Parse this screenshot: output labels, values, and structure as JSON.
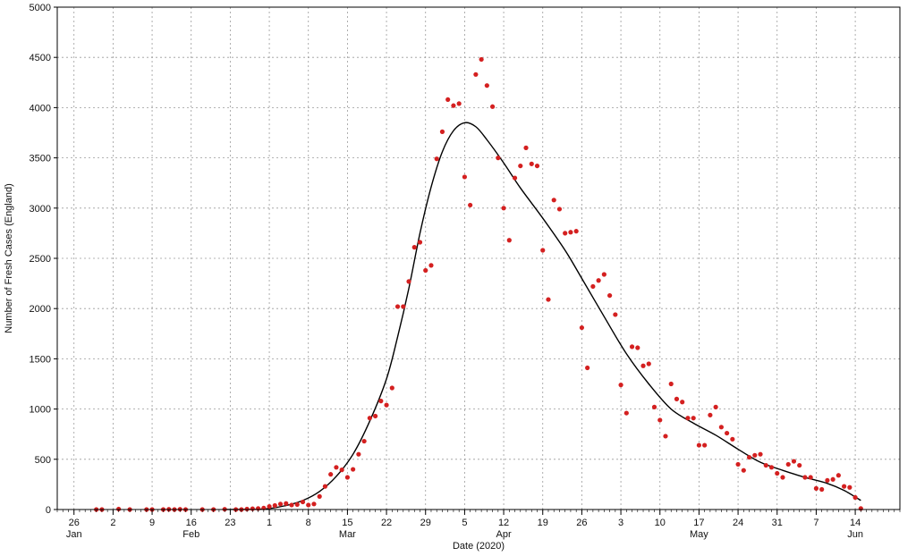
{
  "chart_data": {
    "type": "scatter",
    "title": "",
    "xlabel": "Date (2020)",
    "ylabel": "Number of Fresh Cases (England)",
    "ylim": [
      0,
      5000
    ],
    "xlim": [
      "2020-01-23",
      "2020-06-22"
    ],
    "grid": true,
    "y_ticks": [
      0,
      500,
      1000,
      1500,
      2000,
      2500,
      3000,
      3500,
      4000,
      4500,
      5000
    ],
    "x_ticks": [
      {
        "date": "2020-01-26",
        "label": "26"
      },
      {
        "date": "2020-02-02",
        "label": "2"
      },
      {
        "date": "2020-02-09",
        "label": "9"
      },
      {
        "date": "2020-02-16",
        "label": "16"
      },
      {
        "date": "2020-02-23",
        "label": "23"
      },
      {
        "date": "2020-03-01",
        "label": "1"
      },
      {
        "date": "2020-03-08",
        "label": "8"
      },
      {
        "date": "2020-03-15",
        "label": "15"
      },
      {
        "date": "2020-03-22",
        "label": "22"
      },
      {
        "date": "2020-03-29",
        "label": "29"
      },
      {
        "date": "2020-04-05",
        "label": "5"
      },
      {
        "date": "2020-04-12",
        "label": "12"
      },
      {
        "date": "2020-04-19",
        "label": "19"
      },
      {
        "date": "2020-04-26",
        "label": "26"
      },
      {
        "date": "2020-05-03",
        "label": "3"
      },
      {
        "date": "2020-05-10",
        "label": "10"
      },
      {
        "date": "2020-05-17",
        "label": "17"
      },
      {
        "date": "2020-05-24",
        "label": "24"
      },
      {
        "date": "2020-05-31",
        "label": "31"
      },
      {
        "date": "2020-06-07",
        "label": "7"
      },
      {
        "date": "2020-06-14",
        "label": "14"
      }
    ],
    "month_labels": [
      {
        "date": "2020-01-26",
        "label": "Jan"
      },
      {
        "date": "2020-02-16",
        "label": "Feb"
      },
      {
        "date": "2020-03-15",
        "label": "Mar"
      },
      {
        "date": "2020-04-12",
        "label": "Apr"
      },
      {
        "date": "2020-05-17",
        "label": "May"
      },
      {
        "date": "2020-06-14",
        "label": "Jun"
      }
    ],
    "series": [
      {
        "kind": "scatter",
        "color": "#d42020",
        "points": [
          [
            "2020-01-30",
            0
          ],
          [
            "2020-01-31",
            0
          ],
          [
            "2020-02-03",
            5
          ],
          [
            "2020-02-05",
            0
          ],
          [
            "2020-02-08",
            0
          ],
          [
            "2020-02-09",
            0
          ],
          [
            "2020-02-11",
            0
          ],
          [
            "2020-02-12",
            2
          ],
          [
            "2020-02-13",
            0
          ],
          [
            "2020-02-14",
            3
          ],
          [
            "2020-02-15",
            0
          ],
          [
            "2020-02-18",
            0
          ],
          [
            "2020-02-20",
            0
          ],
          [
            "2020-02-22",
            3
          ],
          [
            "2020-02-24",
            0
          ],
          [
            "2020-02-25",
            0
          ],
          [
            "2020-02-26",
            5
          ],
          [
            "2020-02-27",
            8
          ],
          [
            "2020-02-28",
            10
          ],
          [
            "2020-02-29",
            15
          ],
          [
            "2020-03-01",
            30
          ],
          [
            "2020-03-02",
            40
          ],
          [
            "2020-03-03",
            55
          ],
          [
            "2020-03-04",
            60
          ],
          [
            "2020-03-05",
            45
          ],
          [
            "2020-03-06",
            50
          ],
          [
            "2020-03-07",
            75
          ],
          [
            "2020-03-08",
            45
          ],
          [
            "2020-03-09",
            55
          ],
          [
            "2020-03-10",
            130
          ],
          [
            "2020-03-11",
            230
          ],
          [
            "2020-03-12",
            350
          ],
          [
            "2020-03-13",
            420
          ],
          [
            "2020-03-14",
            395
          ],
          [
            "2020-03-15",
            320
          ],
          [
            "2020-03-16",
            400
          ],
          [
            "2020-03-17",
            550
          ],
          [
            "2020-03-18",
            680
          ],
          [
            "2020-03-19",
            910
          ],
          [
            "2020-03-20",
            930
          ],
          [
            "2020-03-21",
            1080
          ],
          [
            "2020-03-22",
            1040
          ],
          [
            "2020-03-23",
            1210
          ],
          [
            "2020-03-24",
            2020
          ],
          [
            "2020-03-25",
            2020
          ],
          [
            "2020-03-26",
            2270
          ],
          [
            "2020-03-27",
            2610
          ],
          [
            "2020-03-28",
            2660
          ],
          [
            "2020-03-29",
            2380
          ],
          [
            "2020-03-30",
            2430
          ],
          [
            "2020-03-31",
            3490
          ],
          [
            "2020-04-01",
            3760
          ],
          [
            "2020-04-02",
            4080
          ],
          [
            "2020-04-03",
            4020
          ],
          [
            "2020-04-04",
            4040
          ],
          [
            "2020-04-05",
            3310
          ],
          [
            "2020-04-06",
            3030
          ],
          [
            "2020-04-07",
            4330
          ],
          [
            "2020-04-08",
            4480
          ],
          [
            "2020-04-09",
            4220
          ],
          [
            "2020-04-10",
            4010
          ],
          [
            "2020-04-11",
            3500
          ],
          [
            "2020-04-12",
            3000
          ],
          [
            "2020-04-13",
            2680
          ],
          [
            "2020-04-14",
            3300
          ],
          [
            "2020-04-15",
            3420
          ],
          [
            "2020-04-16",
            3600
          ],
          [
            "2020-04-17",
            3440
          ],
          [
            "2020-04-18",
            3420
          ],
          [
            "2020-04-19",
            2580
          ],
          [
            "2020-04-20",
            2090
          ],
          [
            "2020-04-21",
            3080
          ],
          [
            "2020-04-22",
            2990
          ],
          [
            "2020-04-23",
            2750
          ],
          [
            "2020-04-24",
            2760
          ],
          [
            "2020-04-25",
            2770
          ],
          [
            "2020-04-26",
            1810
          ],
          [
            "2020-04-27",
            1410
          ],
          [
            "2020-04-28",
            2220
          ],
          [
            "2020-04-29",
            2280
          ],
          [
            "2020-04-30",
            2340
          ],
          [
            "2020-05-01",
            2130
          ],
          [
            "2020-05-02",
            1940
          ],
          [
            "2020-05-03",
            1240
          ],
          [
            "2020-05-04",
            960
          ],
          [
            "2020-05-05",
            1620
          ],
          [
            "2020-05-06",
            1610
          ],
          [
            "2020-05-07",
            1430
          ],
          [
            "2020-05-08",
            1450
          ],
          [
            "2020-05-09",
            1020
          ],
          [
            "2020-05-10",
            890
          ],
          [
            "2020-05-11",
            730
          ],
          [
            "2020-05-12",
            1250
          ],
          [
            "2020-05-13",
            1100
          ],
          [
            "2020-05-14",
            1070
          ],
          [
            "2020-05-15",
            910
          ],
          [
            "2020-05-16",
            910
          ],
          [
            "2020-05-17",
            640
          ],
          [
            "2020-05-18",
            640
          ],
          [
            "2020-05-19",
            940
          ],
          [
            "2020-05-20",
            1020
          ],
          [
            "2020-05-21",
            820
          ],
          [
            "2020-05-22",
            760
          ],
          [
            "2020-05-23",
            700
          ],
          [
            "2020-05-24",
            450
          ],
          [
            "2020-05-25",
            390
          ],
          [
            "2020-05-26",
            520
          ],
          [
            "2020-05-27",
            540
          ],
          [
            "2020-05-28",
            550
          ],
          [
            "2020-05-29",
            440
          ],
          [
            "2020-05-30",
            420
          ],
          [
            "2020-05-31",
            360
          ],
          [
            "2020-06-01",
            320
          ],
          [
            "2020-06-02",
            450
          ],
          [
            "2020-06-03",
            480
          ],
          [
            "2020-06-04",
            440
          ],
          [
            "2020-06-05",
            320
          ],
          [
            "2020-06-06",
            320
          ],
          [
            "2020-06-07",
            210
          ],
          [
            "2020-06-08",
            200
          ],
          [
            "2020-06-09",
            290
          ],
          [
            "2020-06-10",
            300
          ],
          [
            "2020-06-11",
            340
          ],
          [
            "2020-06-12",
            230
          ],
          [
            "2020-06-13",
            220
          ],
          [
            "2020-06-14",
            120
          ],
          [
            "2020-06-15",
            10
          ]
        ]
      },
      {
        "kind": "line",
        "color": "#000000",
        "points": [
          [
            "2020-02-22",
            0
          ],
          [
            "2020-02-29",
            5
          ],
          [
            "2020-03-04",
            40
          ],
          [
            "2020-03-07",
            90
          ],
          [
            "2020-03-10",
            180
          ],
          [
            "2020-03-13",
            330
          ],
          [
            "2020-03-16",
            550
          ],
          [
            "2020-03-19",
            880
          ],
          [
            "2020-03-22",
            1300
          ],
          [
            "2020-03-24",
            1720
          ],
          [
            "2020-03-26",
            2200
          ],
          [
            "2020-03-28",
            2750
          ],
          [
            "2020-03-30",
            3210
          ],
          [
            "2020-04-01",
            3560
          ],
          [
            "2020-04-03",
            3770
          ],
          [
            "2020-04-05",
            3850
          ],
          [
            "2020-04-07",
            3810
          ],
          [
            "2020-04-09",
            3680
          ],
          [
            "2020-04-12",
            3450
          ],
          [
            "2020-04-15",
            3200
          ],
          [
            "2020-04-19",
            2900
          ],
          [
            "2020-04-23",
            2580
          ],
          [
            "2020-04-26",
            2300
          ],
          [
            "2020-04-30",
            1920
          ],
          [
            "2020-05-04",
            1550
          ],
          [
            "2020-05-08",
            1250
          ],
          [
            "2020-05-12",
            1000
          ],
          [
            "2020-05-16",
            860
          ],
          [
            "2020-05-20",
            740
          ],
          [
            "2020-05-24",
            600
          ],
          [
            "2020-05-28",
            470
          ],
          [
            "2020-06-01",
            390
          ],
          [
            "2020-06-05",
            320
          ],
          [
            "2020-06-09",
            260
          ],
          [
            "2020-06-12",
            190
          ],
          [
            "2020-06-15",
            90
          ]
        ]
      }
    ]
  }
}
